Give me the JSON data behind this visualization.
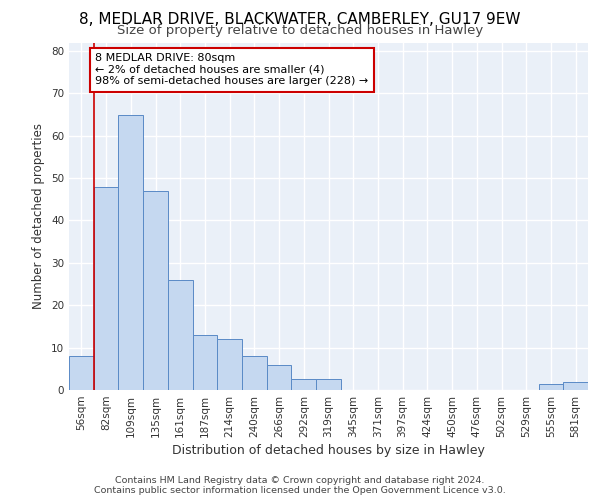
{
  "title1": "8, MEDLAR DRIVE, BLACKWATER, CAMBERLEY, GU17 9EW",
  "title2": "Size of property relative to detached houses in Hawley",
  "xlabel": "Distribution of detached houses by size in Hawley",
  "ylabel": "Number of detached properties",
  "bin_labels": [
    "56sqm",
    "82sqm",
    "109sqm",
    "135sqm",
    "161sqm",
    "187sqm",
    "214sqm",
    "240sqm",
    "266sqm",
    "292sqm",
    "319sqm",
    "345sqm",
    "371sqm",
    "397sqm",
    "424sqm",
    "450sqm",
    "476sqm",
    "502sqm",
    "529sqm",
    "555sqm",
    "581sqm"
  ],
  "bar_values": [
    8,
    48,
    65,
    47,
    26,
    13,
    12,
    8,
    6,
    2.5,
    2.5,
    0,
    0,
    0,
    0,
    0,
    0,
    0,
    0,
    1.5,
    2
  ],
  "bar_color": "#c5d8f0",
  "bar_edge_color": "#5a8ac6",
  "annotation_text": "8 MEDLAR DRIVE: 80sqm\n← 2% of detached houses are smaller (4)\n98% of semi-detached houses are larger (228) →",
  "annotation_box_color": "#ffffff",
  "annotation_box_edge": "#cc0000",
  "vline_x": 0.5,
  "vline_color": "#cc0000",
  "ylim": [
    0,
    82
  ],
  "yticks": [
    0,
    10,
    20,
    30,
    40,
    50,
    60,
    70,
    80
  ],
  "footer1": "Contains HM Land Registry data © Crown copyright and database right 2024.",
  "footer2": "Contains public sector information licensed under the Open Government Licence v3.0.",
  "bg_color": "#eaf0f8",
  "grid_color": "#ffffff",
  "title1_fontsize": 11,
  "title2_fontsize": 9.5,
  "axis_label_fontsize": 8.5,
  "tick_fontsize": 7.5,
  "annotation_fontsize": 8,
  "footer_fontsize": 6.8
}
